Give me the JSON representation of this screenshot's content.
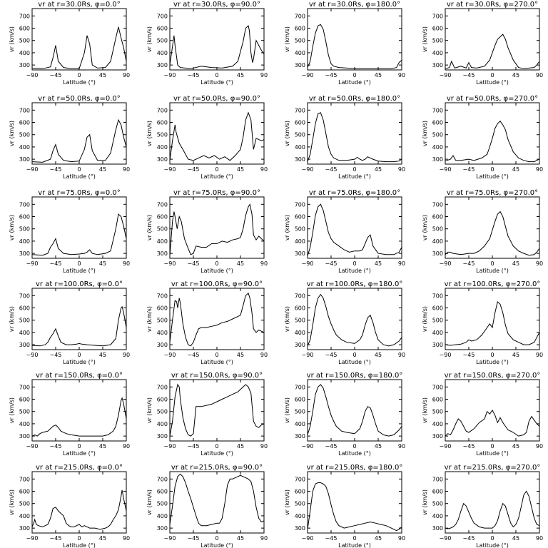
{
  "figure": {
    "rows": 6,
    "cols": 4,
    "xlabel": "Latitude (°)",
    "ylabel": "vr (km/s)",
    "xlim": [
      -90,
      90
    ],
    "ylim": [
      260,
      760
    ],
    "xticks": [
      -90,
      -45,
      0,
      45,
      90
    ],
    "yticks": [
      300,
      400,
      500,
      600,
      700
    ],
    "line_color": "#000000"
  },
  "chart_data": [
    {
      "type": "line",
      "title": "vr at r=30.0Rs, φ=0.0°",
      "x": [
        -90,
        -70,
        -55,
        -50,
        -45,
        -40,
        -30,
        -15,
        0,
        10,
        15,
        20,
        25,
        35,
        50,
        60,
        70,
        75,
        80,
        85,
        90
      ],
      "y": [
        275,
        270,
        285,
        360,
        460,
        330,
        280,
        270,
        270,
        400,
        540,
        470,
        300,
        275,
        280,
        330,
        520,
        610,
        520,
        440,
        330
      ]
    },
    {
      "type": "line",
      "title": "vr at r=30.0Rs, φ=90.0°",
      "x": [
        -90,
        -85,
        -82,
        -80,
        -75,
        -70,
        -50,
        -30,
        -10,
        10,
        30,
        40,
        50,
        55,
        60,
        62,
        65,
        68,
        70,
        75,
        80,
        85,
        90
      ],
      "y": [
        300,
        450,
        540,
        460,
        300,
        280,
        270,
        290,
        280,
        275,
        290,
        330,
        490,
        600,
        620,
        580,
        400,
        320,
        350,
        500,
        460,
        420,
        390
      ]
    },
    {
      "type": "line",
      "title": "vr at r=30.0Rs, φ=180.0°",
      "x": [
        -90,
        -85,
        -80,
        -75,
        -70,
        -65,
        -60,
        -55,
        -50,
        -45,
        -40,
        -30,
        -15,
        0,
        20,
        45,
        70,
        80,
        85,
        90
      ],
      "y": [
        280,
        330,
        450,
        560,
        620,
        630,
        590,
        490,
        380,
        310,
        290,
        280,
        275,
        270,
        270,
        270,
        270,
        280,
        320,
        340
      ]
    },
    {
      "type": "line",
      "title": "vr at r=30.0Rs, φ=270.0°",
      "x": [
        -90,
        -82,
        -78,
        -72,
        -60,
        -50,
        -45,
        -40,
        -30,
        -15,
        -5,
        0,
        5,
        10,
        15,
        20,
        25,
        30,
        40,
        50,
        60,
        70,
        80,
        85,
        90
      ],
      "y": [
        270,
        280,
        330,
        275,
        290,
        275,
        320,
        280,
        275,
        290,
        340,
        400,
        460,
        510,
        530,
        550,
        510,
        440,
        340,
        280,
        270,
        275,
        280,
        300,
        330
      ]
    },
    {
      "type": "line",
      "title": "vr at r=50.0Rs, φ=0.0°",
      "x": [
        -90,
        -70,
        -55,
        -50,
        -45,
        -40,
        -30,
        -15,
        0,
        10,
        15,
        20,
        25,
        35,
        50,
        60,
        70,
        75,
        80,
        85,
        90
      ],
      "y": [
        280,
        275,
        300,
        370,
        420,
        340,
        290,
        280,
        285,
        380,
        480,
        500,
        370,
        290,
        290,
        350,
        540,
        620,
        580,
        480,
        400
      ]
    },
    {
      "type": "line",
      "title": "vr at r=50.0Rs, φ=90.0°",
      "x": [
        -90,
        -85,
        -80,
        -78,
        -72,
        -65,
        -55,
        -45,
        -35,
        -25,
        -15,
        -5,
        5,
        15,
        25,
        35,
        45,
        50,
        55,
        60,
        65,
        70,
        75,
        80,
        85,
        90
      ],
      "y": [
        290,
        450,
        580,
        520,
        430,
        380,
        300,
        290,
        310,
        330,
        310,
        330,
        300,
        320,
        290,
        330,
        380,
        480,
        620,
        680,
        620,
        380,
        470,
        460,
        450,
        460
      ]
    },
    {
      "type": "line",
      "title": "vr at r=50.0Rs, φ=180.0°",
      "x": [
        -90,
        -85,
        -80,
        -75,
        -70,
        -65,
        -60,
        -55,
        -50,
        -45,
        -40,
        -30,
        -15,
        0,
        5,
        10,
        15,
        20,
        25,
        30,
        35,
        45,
        60,
        75,
        85,
        90
      ],
      "y": [
        280,
        340,
        460,
        590,
        670,
        680,
        620,
        510,
        400,
        340,
        310,
        290,
        290,
        300,
        315,
        300,
        290,
        300,
        320,
        310,
        300,
        285,
        280,
        280,
        285,
        300
      ]
    },
    {
      "type": "line",
      "title": "vr at r=50.0Rs, φ=270.0°",
      "x": [
        -90,
        -80,
        -75,
        -70,
        -60,
        -45,
        -35,
        -20,
        -10,
        -5,
        0,
        5,
        10,
        15,
        20,
        25,
        30,
        40,
        50,
        60,
        70,
        80,
        85,
        90
      ],
      "y": [
        285,
        300,
        330,
        290,
        290,
        300,
        290,
        310,
        340,
        400,
        470,
        550,
        590,
        610,
        580,
        540,
        460,
        360,
        310,
        290,
        280,
        280,
        290,
        300
      ]
    },
    {
      "type": "line",
      "title": "vr at r=75.0Rs, φ=0.0°",
      "x": [
        -90,
        -70,
        -60,
        -55,
        -50,
        -45,
        -40,
        -30,
        -15,
        0,
        10,
        15,
        20,
        25,
        35,
        50,
        60,
        70,
        75,
        80,
        85,
        90
      ],
      "y": [
        290,
        285,
        300,
        350,
        380,
        420,
        340,
        300,
        290,
        295,
        300,
        310,
        330,
        300,
        290,
        300,
        320,
        500,
        620,
        600,
        520,
        420
      ]
    },
    {
      "type": "line",
      "title": "vr at r=75.0Rs, φ=90.0°",
      "x": [
        -90,
        -85,
        -82,
        -80,
        -76,
        -72,
        -68,
        -62,
        -55,
        -50,
        -45,
        -40,
        -30,
        -20,
        -10,
        0,
        10,
        20,
        30,
        40,
        45,
        50,
        55,
        60,
        63,
        67,
        70,
        75,
        80,
        85,
        90
      ],
      "y": [
        280,
        560,
        640,
        600,
        500,
        600,
        560,
        420,
        340,
        290,
        300,
        360,
        350,
        350,
        380,
        380,
        400,
        390,
        410,
        420,
        430,
        500,
        610,
        680,
        700,
        620,
        450,
        410,
        440,
        420,
        400
      ]
    },
    {
      "type": "line",
      "title": "vr at r=75.0Rs, φ=180.0°",
      "x": [
        -90,
        -85,
        -80,
        -75,
        -70,
        -65,
        -60,
        -55,
        -50,
        -45,
        -40,
        -30,
        -20,
        -10,
        0,
        10,
        15,
        20,
        25,
        30,
        35,
        45,
        60,
        75,
        85,
        90
      ],
      "y": [
        280,
        350,
        470,
        610,
        680,
        700,
        650,
        560,
        470,
        420,
        390,
        360,
        330,
        310,
        320,
        320,
        330,
        380,
        430,
        450,
        360,
        300,
        290,
        290,
        310,
        350
      ]
    },
    {
      "type": "line",
      "title": "vr at r=75.0Rs, φ=270.0°",
      "x": [
        -90,
        -85,
        -80,
        -75,
        -60,
        -45,
        -35,
        -25,
        -15,
        -5,
        0,
        5,
        10,
        15,
        20,
        25,
        30,
        40,
        50,
        60,
        70,
        80,
        85,
        90
      ],
      "y": [
        290,
        310,
        310,
        300,
        290,
        300,
        300,
        320,
        360,
        420,
        490,
        560,
        620,
        640,
        600,
        520,
        440,
        360,
        320,
        300,
        285,
        290,
        310,
        340
      ]
    },
    {
      "type": "line",
      "title": "vr at r=100.0Rs, φ=0.0°",
      "x": [
        -90,
        -75,
        -65,
        -60,
        -55,
        -50,
        -45,
        -40,
        -35,
        -25,
        -15,
        -5,
        0,
        5,
        15,
        30,
        45,
        60,
        70,
        75,
        80,
        82,
        85,
        90
      ],
      "y": [
        295,
        290,
        300,
        320,
        360,
        390,
        430,
        370,
        320,
        300,
        300,
        305,
        310,
        305,
        300,
        295,
        290,
        300,
        350,
        500,
        600,
        610,
        560,
        440
      ]
    },
    {
      "type": "line",
      "title": "vr at r=100.0Rs, φ=90.0°",
      "x": [
        -90,
        -85,
        -80,
        -77,
        -75,
        -72,
        -70,
        -65,
        -60,
        -55,
        -50,
        -45,
        -40,
        -35,
        -30,
        -20,
        -10,
        0,
        10,
        20,
        30,
        40,
        45,
        50,
        55,
        60,
        63,
        67,
        70,
        75,
        80,
        85,
        90
      ],
      "y": [
        320,
        500,
        660,
        650,
        600,
        680,
        640,
        470,
        360,
        300,
        290,
        320,
        380,
        430,
        440,
        440,
        450,
        460,
        480,
        490,
        510,
        530,
        540,
        620,
        700,
        720,
        680,
        560,
        430,
        400,
        420,
        410,
        400
      ]
    },
    {
      "type": "line",
      "title": "vr at r=100.0Rs, φ=180.0°",
      "x": [
        -90,
        -85,
        -80,
        -75,
        -70,
        -65,
        -60,
        -55,
        -50,
        -45,
        -40,
        -35,
        -25,
        -15,
        0,
        10,
        15,
        20,
        25,
        30,
        35,
        40,
        45,
        55,
        65,
        75,
        85,
        90
      ],
      "y": [
        290,
        340,
        460,
        600,
        680,
        710,
        680,
        610,
        530,
        470,
        420,
        380,
        340,
        320,
        310,
        340,
        380,
        460,
        520,
        540,
        480,
        400,
        340,
        300,
        290,
        300,
        330,
        360
      ]
    },
    {
      "type": "line",
      "title": "vr at r=100.0Rs, φ=270.0°",
      "x": [
        -90,
        -80,
        -70,
        -60,
        -50,
        -45,
        -40,
        -30,
        -20,
        -10,
        -5,
        0,
        5,
        10,
        15,
        20,
        25,
        30,
        40,
        50,
        60,
        70,
        80,
        85,
        90
      ],
      "y": [
        300,
        295,
        300,
        305,
        320,
        340,
        330,
        340,
        380,
        440,
        470,
        440,
        560,
        650,
        630,
        560,
        460,
        390,
        340,
        320,
        300,
        300,
        320,
        360,
        400
      ]
    },
    {
      "type": "line",
      "title": "vr at r=150.0Rs, φ=0.0°",
      "x": [
        -90,
        -85,
        -80,
        -75,
        -70,
        -60,
        -55,
        -50,
        -45,
        -40,
        -35,
        -25,
        -15,
        0,
        15,
        30,
        45,
        55,
        65,
        70,
        75,
        80,
        82,
        85,
        90
      ],
      "y": [
        300,
        310,
        300,
        320,
        330,
        340,
        360,
        380,
        390,
        370,
        340,
        320,
        310,
        300,
        300,
        300,
        300,
        310,
        340,
        380,
        470,
        590,
        610,
        560,
        440
      ]
    },
    {
      "type": "line",
      "title": "vr at r=150.0Rs, φ=90.0°",
      "x": [
        -90,
        -85,
        -80,
        -75,
        -72,
        -70,
        -65,
        -60,
        -55,
        -50,
        -45,
        -40,
        -35,
        -30,
        -20,
        -10,
        0,
        10,
        20,
        30,
        40,
        45,
        50,
        55,
        60,
        65,
        70,
        75,
        80,
        85,
        90
      ],
      "y": [
        300,
        420,
        620,
        720,
        700,
        600,
        450,
        360,
        310,
        300,
        320,
        540,
        540,
        540,
        550,
        560,
        580,
        600,
        620,
        640,
        660,
        680,
        700,
        720,
        700,
        650,
        420,
        380,
        370,
        390,
        400
      ]
    },
    {
      "type": "line",
      "title": "vr at r=150.0Rs, φ=180.0°",
      "x": [
        -90,
        -85,
        -80,
        -75,
        -70,
        -65,
        -60,
        -55,
        -50,
        -45,
        -40,
        -35,
        -25,
        -15,
        0,
        10,
        15,
        20,
        25,
        30,
        35,
        40,
        45,
        55,
        65,
        75,
        85,
        90
      ],
      "y": [
        310,
        380,
        500,
        640,
        700,
        720,
        690,
        620,
        540,
        470,
        420,
        380,
        340,
        330,
        320,
        360,
        420,
        500,
        540,
        530,
        470,
        400,
        340,
        310,
        300,
        310,
        350,
        380
      ]
    },
    {
      "type": "line",
      "title": "vr at r=150.0Rs, φ=270.0°",
      "x": [
        -90,
        -85,
        -80,
        -75,
        -70,
        -65,
        -60,
        -55,
        -50,
        -45,
        -35,
        -25,
        -15,
        -10,
        -5,
        0,
        5,
        10,
        15,
        20,
        25,
        30,
        35,
        40,
        50,
        60,
        65,
        70,
        75,
        80,
        85,
        90
      ],
      "y": [
        300,
        320,
        310,
        350,
        400,
        440,
        420,
        380,
        340,
        330,
        360,
        410,
        440,
        500,
        480,
        510,
        470,
        410,
        450,
        410,
        380,
        350,
        340,
        330,
        300,
        310,
        330,
        420,
        460,
        430,
        400,
        380
      ]
    },
    {
      "type": "line",
      "title": "vr at r=215.0Rs, φ=0.0°",
      "x": [
        -90,
        -87,
        -85,
        -82,
        -78,
        -70,
        -60,
        -55,
        -50,
        -45,
        -40,
        -35,
        -30,
        -25,
        -20,
        -15,
        -10,
        -5,
        0,
        5,
        10,
        15,
        20,
        30,
        40,
        50,
        55,
        60,
        65,
        70,
        75,
        80,
        82,
        85,
        90
      ],
      "y": [
        310,
        340,
        370,
        330,
        320,
        310,
        330,
        380,
        460,
        470,
        440,
        420,
        400,
        340,
        320,
        310,
        310,
        320,
        330,
        310,
        320,
        310,
        300,
        300,
        290,
        300,
        310,
        330,
        370,
        400,
        450,
        560,
        610,
        540,
        440
      ]
    },
    {
      "type": "line",
      "title": "vr at r=215.0Rs, φ=90.0°",
      "x": [
        -90,
        -85,
        -80,
        -75,
        -70,
        -65,
        -60,
        -55,
        -50,
        -45,
        -40,
        -35,
        -30,
        -20,
        -10,
        0,
        5,
        10,
        15,
        20,
        25,
        30,
        35,
        40,
        45,
        50,
        55,
        60,
        65,
        70,
        75,
        80,
        85,
        90
      ],
      "y": [
        330,
        480,
        640,
        720,
        740,
        720,
        670,
        600,
        540,
        470,
        400,
        340,
        320,
        320,
        330,
        340,
        340,
        380,
        500,
        650,
        700,
        700,
        710,
        720,
        730,
        720,
        710,
        700,
        680,
        600,
        470,
        380,
        350,
        360
      ]
    },
    {
      "type": "line",
      "title": "vr at r=215.0Rs, φ=180.0°",
      "x": [
        -90,
        -85,
        -80,
        -75,
        -70,
        -65,
        -60,
        -55,
        -50,
        -45,
        -40,
        -35,
        -30,
        -20,
        -10,
        0,
        10,
        20,
        30,
        40,
        50,
        60,
        70,
        80,
        85,
        90
      ],
      "y": [
        290,
        440,
        600,
        660,
        670,
        670,
        660,
        640,
        580,
        490,
        410,
        350,
        320,
        300,
        310,
        320,
        330,
        340,
        350,
        340,
        330,
        320,
        300,
        280,
        290,
        310
      ]
    },
    {
      "type": "line",
      "title": "vr at r=215.0Rs, φ=270.0°",
      "x": [
        -90,
        -85,
        -80,
        -75,
        -70,
        -65,
        -60,
        -55,
        -50,
        -45,
        -40,
        -35,
        -25,
        -15,
        -5,
        0,
        5,
        10,
        15,
        20,
        25,
        30,
        35,
        40,
        45,
        50,
        55,
        60,
        65,
        70,
        75,
        80,
        85,
        90
      ],
      "y": [
        300,
        295,
        300,
        310,
        330,
        370,
        440,
        500,
        480,
        430,
        380,
        340,
        310,
        300,
        300,
        300,
        320,
        360,
        440,
        500,
        480,
        410,
        340,
        310,
        330,
        380,
        470,
        570,
        600,
        560,
        470,
        380,
        330,
        320
      ]
    }
  ]
}
